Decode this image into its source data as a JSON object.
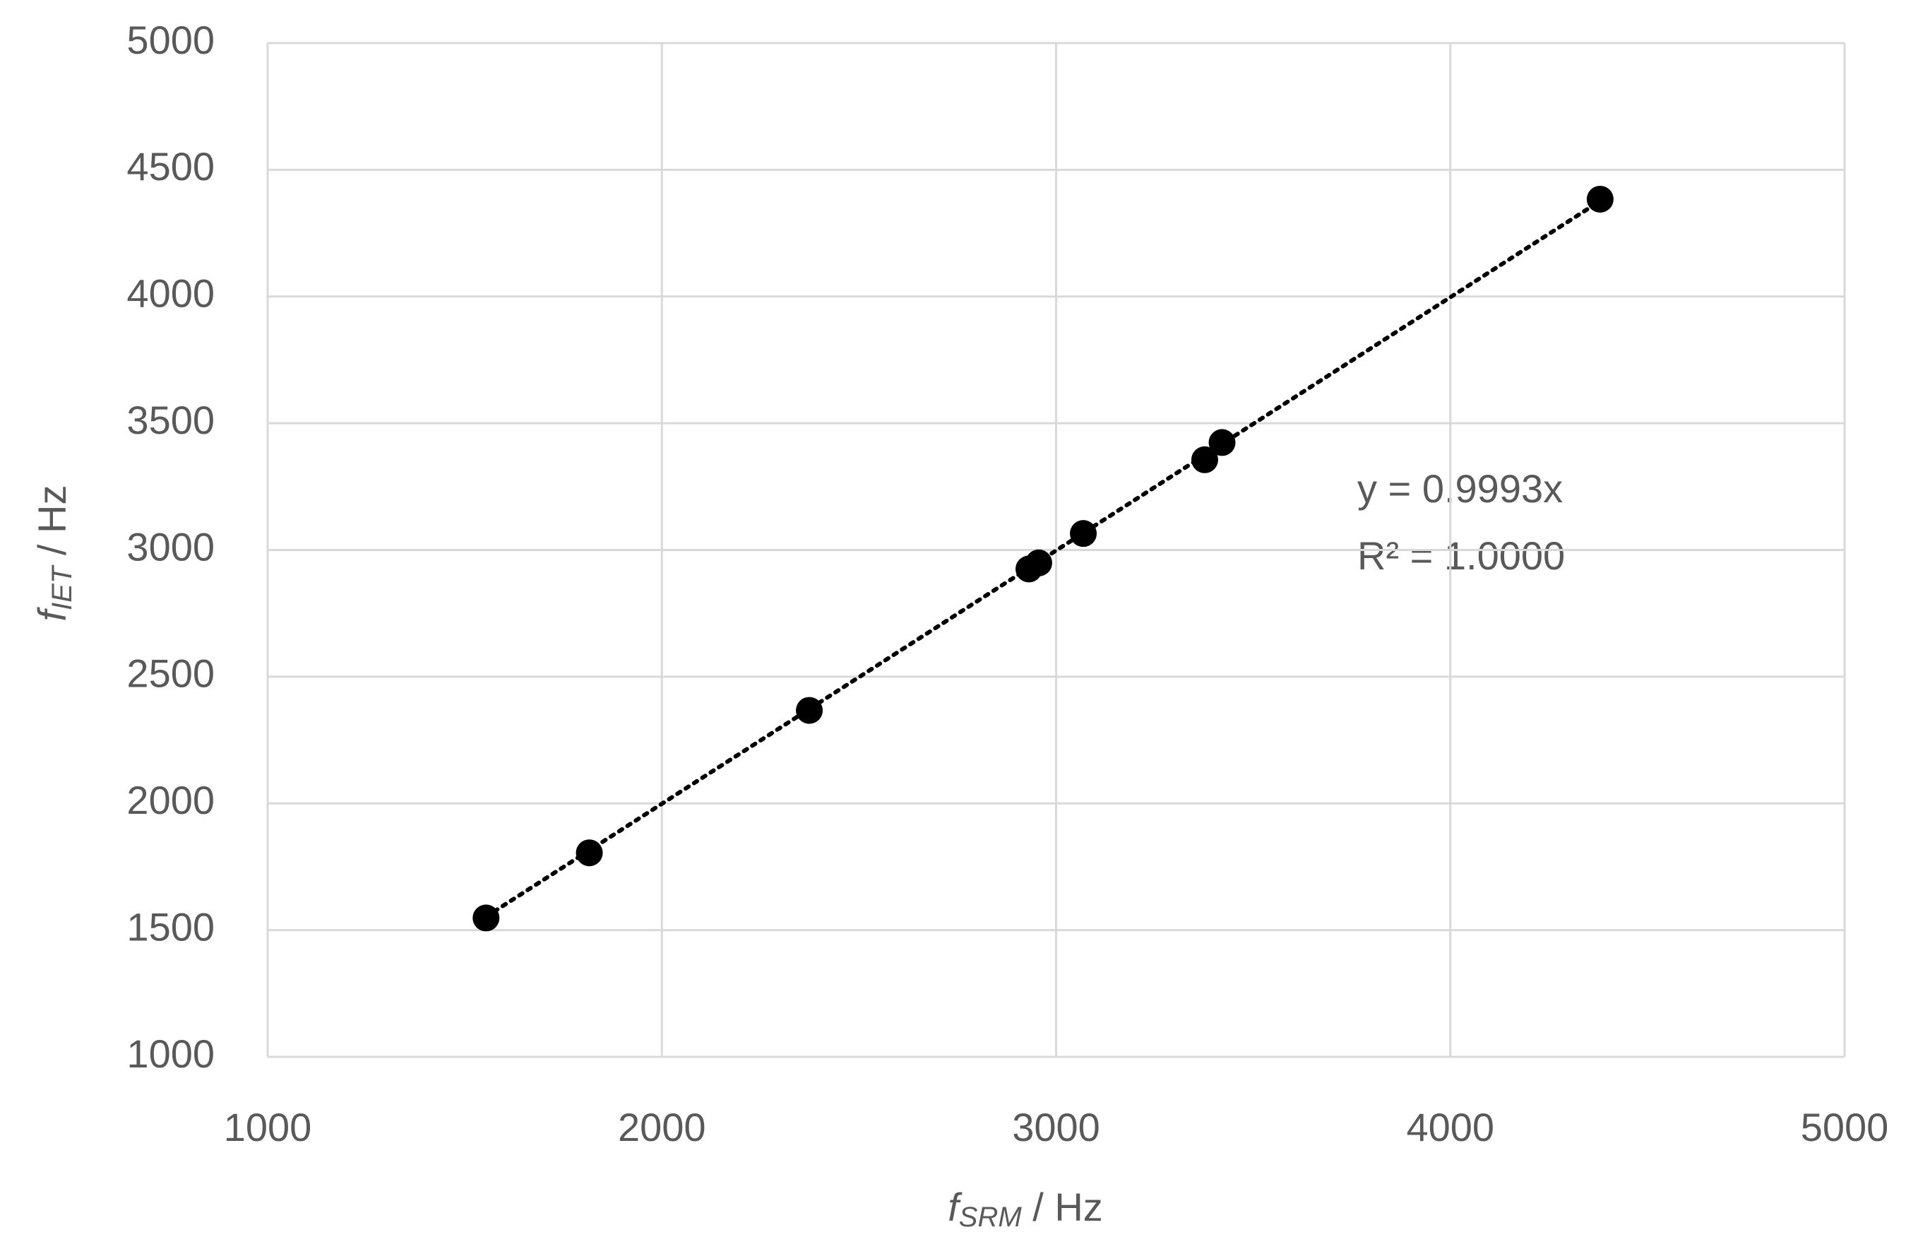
{
  "chart_data": {
    "type": "scatter",
    "x_label": {
      "symbol": "f",
      "subscript": "SRM",
      "unit": " / Hz"
    },
    "y_label": {
      "symbol": "f",
      "subscript": "IET",
      "unit": " / Hz"
    },
    "x": [
      1554,
      1816,
      2374,
      2931,
      2956,
      3069,
      3377,
      3421,
      4380
    ],
    "series": [
      {
        "color": "#000000",
        "values": [
          1548,
          1805,
          2367,
          2925,
          2949,
          3065,
          3356,
          3424,
          4384
        ]
      }
    ],
    "xlim": [
      1000,
      5000
    ],
    "xticks": [
      1000,
      2000,
      3000,
      4000,
      5000
    ],
    "ylim": [
      1000,
      5000
    ],
    "yticks": [
      1000,
      1500,
      2000,
      2500,
      3000,
      3500,
      4000,
      4500,
      5000
    ],
    "grid": true,
    "trendline": {
      "slope": 0.9993,
      "equation": "y = 0.9993x",
      "r2": "R² = 1.0000"
    }
  }
}
